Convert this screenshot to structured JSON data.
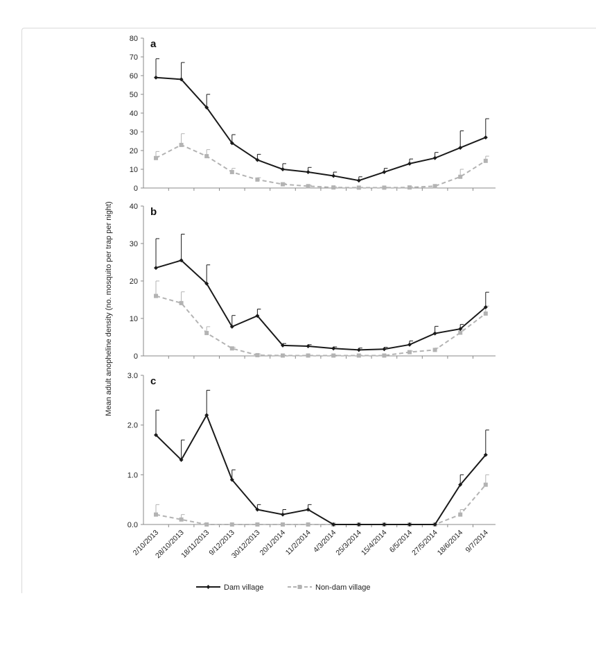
{
  "figure": {
    "ylabel": "Mean adult anopheline density (no. mosquito per trap per night)"
  },
  "chart_data": {
    "type": "line",
    "categories": [
      "2/10/2013",
      "28/10/2013",
      "18/11/2013",
      "9/12/2013",
      "30/12/2013",
      "20/1/2014",
      "11/2/2014",
      "4/3/2014",
      "25/3/2014",
      "15/4/2014",
      "6/5/2014",
      "27/5/2014",
      "18/6/2014",
      "9/7/2014"
    ],
    "legend": [
      "Dam village",
      "Non-dam village"
    ],
    "colors": {
      "dam": "#1a1a1a",
      "nondam": "#b3b3b3"
    },
    "panels": [
      {
        "label": "a",
        "ylim": [
          0,
          80
        ],
        "yticks": [
          "0",
          "10",
          "20",
          "30",
          "40",
          "50",
          "60",
          "70",
          "80"
        ],
        "series": [
          {
            "name": "Dam village",
            "values": [
              59,
              58,
              43,
              24,
              15,
              10,
              8.5,
              6.5,
              4,
              8.5,
              13,
              16,
              21.5,
              27
            ],
            "errors": [
              10,
              9,
              7,
              4.5,
              3,
              3,
              2.5,
              2,
              2,
              2,
              2.5,
              3,
              9,
              10
            ]
          },
          {
            "name": "Non-dam village",
            "values": [
              16,
              23,
              17,
              8.5,
              4.5,
              2,
              1,
              0.3,
              0.2,
              0.2,
              0.3,
              1,
              6,
              14.5
            ],
            "errors": [
              3.5,
              6,
              3.5,
              2,
              1,
              0.5,
              0.5,
              0.3,
              0.2,
              0.2,
              0.3,
              0.5,
              4,
              2.5
            ]
          }
        ]
      },
      {
        "label": "b",
        "ylim": [
          0,
          40
        ],
        "yticks": [
          "0",
          "10",
          "20",
          "30",
          "40"
        ],
        "series": [
          {
            "name": "Dam village",
            "values": [
              23.5,
              25.5,
              19.3,
              7.8,
              10.7,
              2.8,
              2.6,
              2.0,
              1.6,
              1.8,
              3.0,
              6.0,
              7.2,
              13.0
            ],
            "errors": [
              7.8,
              7,
              5,
              3,
              1.8,
              0.5,
              0.4,
              0.4,
              0.5,
              0.5,
              1,
              1.9,
              1.2,
              4
            ]
          },
          {
            "name": "Non-dam village",
            "values": [
              16,
              14.1,
              6.1,
              2.0,
              0.2,
              0.1,
              0.1,
              0.1,
              0.1,
              0.1,
              1.0,
              1.6,
              6.2,
              11.3
            ],
            "errors": [
              4,
              3,
              1.7,
              0.3,
              0.3,
              0.1,
              0.1,
              0.1,
              0.1,
              0.1,
              0.3,
              0.5,
              1,
              2
            ]
          }
        ]
      },
      {
        "label": "c",
        "ylim": [
          0,
          3.0
        ],
        "yticks": [
          "0.0",
          "1.0",
          "2.0",
          "3.0"
        ],
        "series": [
          {
            "name": "Dam village",
            "values": [
              1.8,
              1.3,
              2.2,
              0.9,
              0.3,
              0.2,
              0.3,
              0,
              0,
              0,
              0,
              0,
              0.8,
              1.4
            ],
            "errors": [
              0.5,
              0.4,
              0.5,
              0.2,
              0.1,
              0.1,
              0.1,
              0,
              0,
              0,
              0,
              0,
              0.2,
              0.5
            ]
          },
          {
            "name": "Non-dam village",
            "values": [
              0.2,
              0.1,
              0,
              0,
              0,
              0,
              0,
              0,
              0,
              0,
              0,
              0,
              0.2,
              0.8
            ],
            "errors": [
              0.2,
              0.1,
              0,
              0,
              0,
              0,
              0,
              0,
              0,
              0,
              0,
              0,
              0.1,
              0.2
            ]
          }
        ]
      }
    ]
  }
}
